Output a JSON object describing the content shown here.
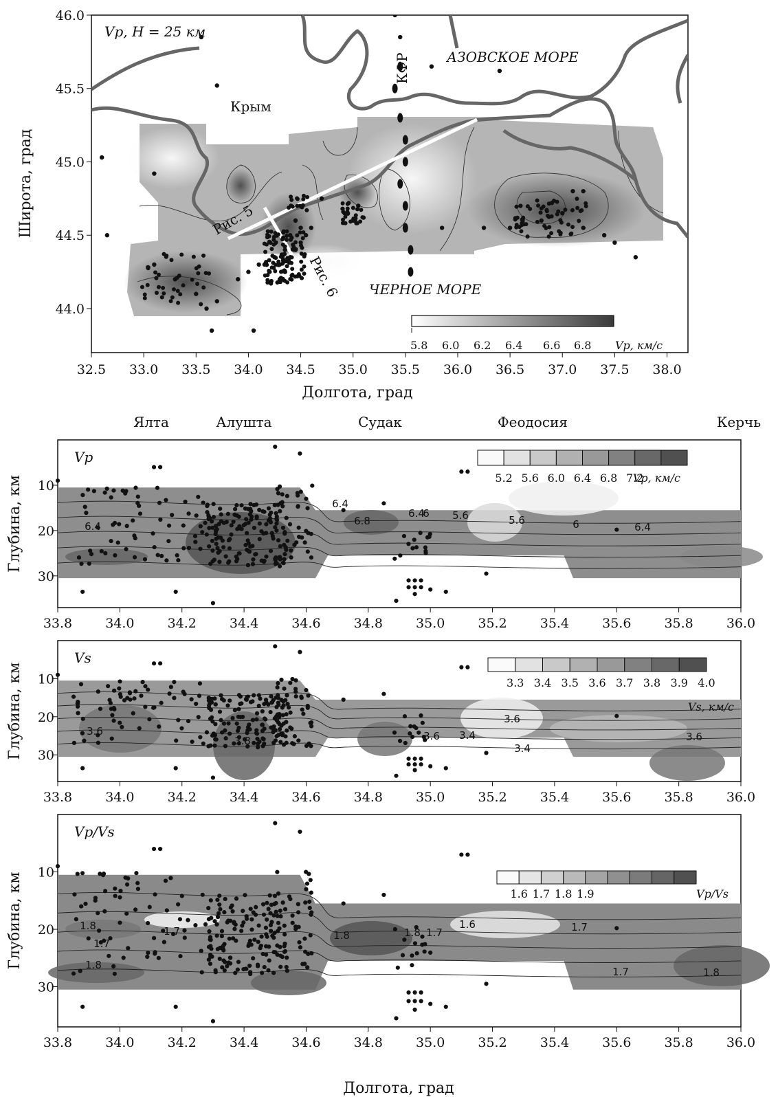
{
  "chart_data": [
    {
      "type": "scatter",
      "title": "Vp, H = 25 км",
      "xlabel": "Долгота, град",
      "ylabel": "Широта, град",
      "xlim": [
        32.5,
        38.2
      ],
      "ylim": [
        43.7,
        46.0
      ],
      "x_ticks": [
        "32.5",
        "33.0",
        "33.5",
        "34.0",
        "34.5",
        "35.0",
        "35.5",
        "36.0",
        "36.5",
        "37.0",
        "37.5",
        "38.0"
      ],
      "y_ticks": [
        "44.0",
        "44.5",
        "45.0",
        "45.5",
        "46.0"
      ],
      "annotations": [
        "Крым",
        "АЗОВСКОЕ МОРЕ",
        "ЧЕРНОЕ МОРЕ",
        "КФР",
        "Рис. 5",
        "Рис. 6"
      ],
      "colorbar": {
        "ticks": [
          "5.8",
          "6.0",
          "6.2",
          "6.4",
          "6.6",
          "6.8"
        ],
        "label": "Vp, км/с"
      },
      "profiles": [
        {
          "name": "Рис. 5",
          "x": [
            33.75,
            36.25
          ],
          "y": [
            44.42,
            45.28
          ]
        },
        {
          "name": "Рис. 6",
          "x": [
            34.2,
            34.47
          ],
          "y": [
            44.62,
            44.22
          ]
        }
      ],
      "series": [
        {
          "name": "earthquakes",
          "points": [
            [
              34.3,
              44.3
            ],
            [
              34.35,
              44.25
            ],
            [
              34.4,
              44.35
            ],
            [
              34.45,
              44.4
            ],
            [
              34.5,
              44.45
            ],
            [
              34.4,
              44.5
            ],
            [
              34.35,
              44.4
            ],
            [
              34.3,
              44.2
            ],
            [
              34.25,
              44.35
            ],
            [
              34.2,
              44.25
            ],
            [
              34.5,
              44.55
            ],
            [
              34.55,
              44.5
            ],
            [
              34.45,
              44.6
            ],
            [
              34.6,
              44.55
            ],
            [
              34.1,
              44.3
            ],
            [
              34.0,
              44.25
            ],
            [
              33.9,
              44.2
            ],
            [
              33.6,
              44.0
            ],
            [
              33.5,
              44.1
            ],
            [
              33.3,
              44.2
            ],
            [
              33.1,
              44.3
            ],
            [
              33.7,
              44.05
            ],
            [
              33.65,
              43.85
            ],
            [
              34.05,
              43.85
            ],
            [
              34.95,
              44.65
            ],
            [
              35.0,
              44.6
            ],
            [
              35.05,
              44.7
            ],
            [
              34.9,
              44.68
            ],
            [
              35.1,
              44.62
            ],
            [
              36.6,
              44.7
            ],
            [
              36.8,
              44.6
            ],
            [
              37.0,
              44.65
            ],
            [
              36.9,
              44.72
            ],
            [
              37.2,
              44.55
            ],
            [
              37.4,
              44.5
            ],
            [
              37.5,
              44.45
            ],
            [
              37.1,
              44.8
            ],
            [
              36.5,
              44.55
            ],
            [
              37.7,
              44.35
            ],
            [
              35.45,
              45.85
            ],
            [
              35.4,
              46.0
            ],
            [
              36.4,
              45.62
            ],
            [
              35.75,
              45.65
            ],
            [
              32.6,
              45.03
            ],
            [
              32.65,
              44.5
            ],
            [
              33.1,
              44.92
            ],
            [
              33.55,
              45.85
            ],
            [
              33.7,
              45.52
            ],
            [
              34.7,
              44.75
            ],
            [
              35.85,
              44.55
            ],
            [
              36.25,
              44.55
            ],
            [
              37.2,
              44.8
            ]
          ]
        },
        {
          "name": "KFR",
          "points": [
            [
              35.45,
              45.65
            ],
            [
              35.4,
              45.5
            ],
            [
              35.45,
              45.3
            ],
            [
              35.5,
              45.15
            ],
            [
              35.5,
              45.0
            ],
            [
              35.45,
              44.85
            ],
            [
              35.5,
              44.7
            ],
            [
              35.5,
              44.55
            ],
            [
              35.55,
              44.4
            ],
            [
              35.55,
              44.25
            ]
          ]
        }
      ]
    },
    {
      "type": "heatmap",
      "title": "Vp",
      "xlabel": "",
      "ylabel": "Глубина, км",
      "xlim": [
        33.8,
        36.0
      ],
      "ylim": [
        37,
        0
      ],
      "x_ticks": [
        "33.8",
        "34.0",
        "34.2",
        "34.4",
        "34.6",
        "34.8",
        "35.0",
        "35.2",
        "35.4",
        "35.6",
        "35.8",
        "36.0"
      ],
      "y_ticks": [
        "10",
        "20",
        "30"
      ],
      "towns": [
        "Ялта",
        "Алушта",
        "Судак",
        "Феодосия",
        "Керчь"
      ],
      "colorbar": {
        "ticks": [
          "5.2",
          "5.6",
          "6.0",
          "6.4",
          "6.8",
          "7.2"
        ],
        "label": "Vp, км/с"
      },
      "contour_labels": [
        "6.4",
        "6.8",
        "6.4",
        "6.4",
        "6",
        "5.6",
        "5.6",
        "6",
        "6.4"
      ]
    },
    {
      "type": "heatmap",
      "title": "Vs",
      "xlabel": "",
      "ylabel": "Глубина, км",
      "xlim": [
        33.8,
        36.0
      ],
      "ylim": [
        37,
        0
      ],
      "x_ticks": [
        "33.8",
        "34.0",
        "34.2",
        "34.4",
        "34.6",
        "34.8",
        "35.0",
        "35.2",
        "35.4",
        "35.6",
        "35.8",
        "36.0"
      ],
      "y_ticks": [
        "10",
        "20",
        "30"
      ],
      "colorbar": {
        "ticks": [
          "3.3",
          "3.4",
          "3.5",
          "3.6",
          "3.7",
          "3.8",
          "3.9",
          "4.0"
        ],
        "label": "Vs, км/с"
      },
      "contour_labels": [
        "3.6",
        "3.8",
        "3.6",
        "3.4",
        "3.6",
        "3.4",
        "3.6"
      ]
    },
    {
      "type": "heatmap",
      "title": "Vp/Vs",
      "xlabel": "Долгота, град",
      "ylabel": "Глубина, км",
      "xlim": [
        33.8,
        36.0
      ],
      "ylim": [
        37,
        0
      ],
      "x_ticks": [
        "33.8",
        "34.0",
        "34.2",
        "34.4",
        "34.6",
        "34.8",
        "35.0",
        "35.2",
        "35.4",
        "35.6",
        "35.8",
        "36.0"
      ],
      "y_ticks": [
        "10",
        "20",
        "30"
      ],
      "colorbar": {
        "ticks": [
          "1.6",
          "1.7",
          "1.8",
          "1.9"
        ],
        "label": "Vp/Vs"
      },
      "contour_labels": [
        "1.8",
        "1.7",
        "1.7",
        "1.8",
        "1.8",
        "1.8",
        "1.7",
        "1.6",
        "1.7",
        "1.7",
        "1.8"
      ]
    }
  ]
}
